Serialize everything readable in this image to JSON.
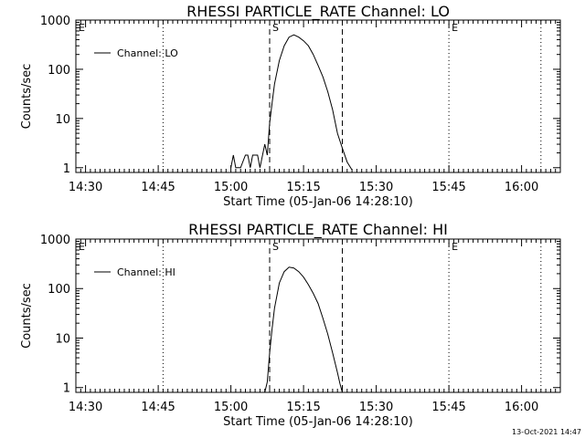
{
  "footer": {
    "timestamp": "13-Oct-2021 14:47"
  },
  "chart_data": [
    {
      "type": "line",
      "title": "RHESSI PARTICLE_RATE Channel: LO",
      "xlabel": "Start Time (05-Jan-06 14:28:10)",
      "ylabel": "Counts/sec",
      "yscale": "log",
      "xlim": [
        "14:28",
        "16:08"
      ],
      "ylim": [
        0.8,
        1000
      ],
      "xticks": [
        "14:30",
        "14:45",
        "15:00",
        "15:15",
        "15:30",
        "15:45",
        "16:00"
      ],
      "yticks": [
        "1",
        "10",
        "100",
        "1000"
      ],
      "legend_position": "top-left",
      "markers": [
        {
          "label": "E",
          "time": "14:28",
          "style": "dotted"
        },
        {
          "label": "",
          "time": "14:46",
          "style": "dotted"
        },
        {
          "label": "S",
          "time": "15:08",
          "style": "dashed"
        },
        {
          "label": "",
          "time": "15:23",
          "style": "dashed"
        },
        {
          "label": "E",
          "time": "15:45",
          "style": "dotted"
        },
        {
          "label": "",
          "time": "16:04",
          "style": "dotted"
        }
      ],
      "series": [
        {
          "name": "Channel: LO",
          "x": [
            "15:00",
            "15:00.5",
            "15:01",
            "15:02",
            "15:03",
            "15:03.5",
            "15:04",
            "15:04.5",
            "15:05",
            "15:05.5",
            "15:06",
            "15:07",
            "15:07.5",
            "15:08",
            "15:08.5",
            "15:09",
            "15:10",
            "15:11",
            "15:12",
            "15:13",
            "15:14",
            "15:15",
            "15:16",
            "15:17",
            "15:18",
            "15:19",
            "15:20",
            "15:21",
            "15:22",
            "15:23",
            "15:24",
            "15:25"
          ],
          "y": [
            1,
            1.8,
            1,
            1,
            1.8,
            1.8,
            1,
            1.8,
            1.8,
            1.8,
            1,
            3,
            1.8,
            8,
            20,
            50,
            150,
            300,
            450,
            500,
            450,
            380,
            300,
            200,
            120,
            70,
            35,
            15,
            5,
            2.5,
            1.3,
            0.9
          ]
        }
      ]
    },
    {
      "type": "line",
      "title": "RHESSI PARTICLE_RATE Channel: HI",
      "xlabel": "Start Time (05-Jan-06 14:28:10)",
      "ylabel": "Counts/sec",
      "yscale": "log",
      "xlim": [
        "14:28",
        "16:08"
      ],
      "ylim": [
        0.8,
        1000
      ],
      "xticks": [
        "14:30",
        "14:45",
        "15:00",
        "15:15",
        "15:30",
        "15:45",
        "16:00"
      ],
      "yticks": [
        "1",
        "10",
        "100",
        "1000"
      ],
      "legend_position": "top-left",
      "markers": [
        {
          "label": "E",
          "time": "14:28",
          "style": "dotted"
        },
        {
          "label": "",
          "time": "14:46",
          "style": "dotted"
        },
        {
          "label": "S",
          "time": "15:08",
          "style": "dashed"
        },
        {
          "label": "",
          "time": "15:23",
          "style": "dashed"
        },
        {
          "label": "E",
          "time": "15:45",
          "style": "dotted"
        },
        {
          "label": "",
          "time": "16:04",
          "style": "dotted"
        }
      ],
      "series": [
        {
          "name": "Channel: HI",
          "x": [
            "15:07",
            "15:07.5",
            "15:08",
            "15:08.5",
            "15:09",
            "15:10",
            "15:11",
            "15:12",
            "15:13",
            "15:14",
            "15:15",
            "15:16",
            "15:17",
            "15:18",
            "15:19",
            "15:20",
            "15:21",
            "15:22",
            "15:22.5",
            "15:23"
          ],
          "y": [
            0.8,
            1.3,
            5,
            15,
            40,
            130,
            220,
            270,
            260,
            220,
            170,
            120,
            80,
            50,
            25,
            12,
            5,
            2,
            1.2,
            0.8
          ]
        }
      ]
    }
  ]
}
